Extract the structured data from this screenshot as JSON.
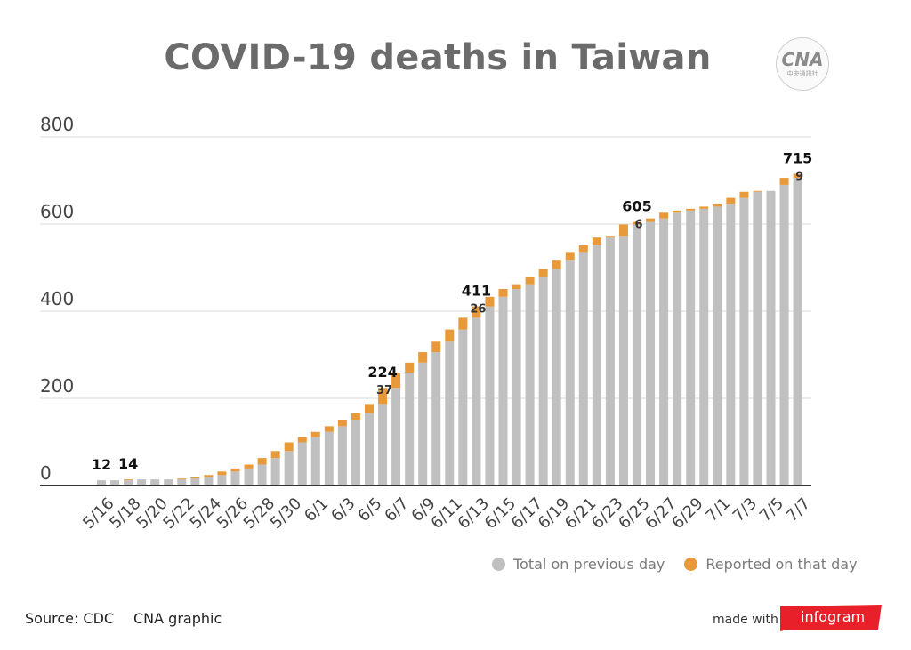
{
  "page": {
    "title": "COVID-19 deaths in Taiwan",
    "logo_text": "CNA",
    "logo_subtext": "中央通訊社",
    "source": "Source: CDC",
    "credit": "CNA graphic",
    "made_with": "made with",
    "brand": "infogram"
  },
  "chart_data": {
    "type": "bar",
    "stacked": true,
    "title": "COVID-19 deaths in Taiwan",
    "xlabel": "",
    "ylabel": "",
    "ylim": [
      0,
      800
    ],
    "yticks": [
      0,
      200,
      400,
      600,
      800
    ],
    "grid": true,
    "legend_position": "bottom-right",
    "categories": [
      "5/16",
      "5/17",
      "5/18",
      "5/19",
      "5/20",
      "5/21",
      "5/22",
      "5/23",
      "5/24",
      "5/25",
      "5/26",
      "5/27",
      "5/28",
      "5/29",
      "5/30",
      "5/31",
      "6/1",
      "6/2",
      "6/3",
      "6/4",
      "6/5",
      "6/6",
      "6/7",
      "6/8",
      "6/9",
      "6/10",
      "6/11",
      "6/12",
      "6/13",
      "6/14",
      "6/15",
      "6/16",
      "6/17",
      "6/18",
      "6/19",
      "6/20",
      "6/21",
      "6/22",
      "6/23",
      "6/24",
      "6/25",
      "6/26",
      "6/27",
      "6/28",
      "6/29",
      "6/30",
      "7/1",
      "7/2",
      "7/3",
      "7/4",
      "7/5",
      "7/6",
      "7/7"
    ],
    "series": [
      {
        "name": "Total on previous day",
        "color": "#c0c0c0",
        "values": [
          12,
          12,
          12,
          14,
          14,
          14,
          14,
          16,
          19,
          24,
          32,
          39,
          48,
          63,
          79,
          99,
          111,
          123,
          136,
          151,
          166,
          187,
          224,
          259,
          282,
          306,
          330,
          358,
          385,
          411,
          433,
          451,
          462,
          478,
          497,
          518,
          536,
          551,
          569,
          573,
          599,
          605,
          613,
          628,
          631,
          635,
          640,
          647,
          660,
          674,
          676,
          690,
          706
        ]
      },
      {
        "name": "Reported on that day",
        "color": "#e89a3a",
        "values": [
          0,
          0,
          2,
          0,
          0,
          0,
          2,
          3,
          5,
          8,
          7,
          9,
          15,
          16,
          20,
          12,
          12,
          13,
          15,
          15,
          21,
          37,
          35,
          23,
          24,
          24,
          28,
          27,
          26,
          22,
          18,
          11,
          16,
          19,
          21,
          18,
          15,
          18,
          4,
          26,
          6,
          8,
          15,
          3,
          4,
          5,
          7,
          13,
          14,
          2,
          0,
          16,
          9
        ]
      }
    ],
    "x_tick_labels": [
      "5/16",
      "5/18",
      "5/20",
      "5/22",
      "5/24",
      "5/26",
      "5/28",
      "5/30",
      "6/1",
      "6/3",
      "6/5",
      "6/7",
      "6/9",
      "6/11",
      "6/13",
      "6/15",
      "6/17",
      "6/19",
      "6/21",
      "6/23",
      "6/25",
      "6/27",
      "6/29",
      "7/1",
      "7/3",
      "7/5",
      "7/7"
    ],
    "annotations": [
      {
        "category": "5/16",
        "total": "12"
      },
      {
        "category": "5/18",
        "total": "14"
      },
      {
        "category": "6/6",
        "total": "224",
        "reported": "37"
      },
      {
        "category": "6/13",
        "total": "411",
        "reported": "26"
      },
      {
        "category": "6/25",
        "total": "605",
        "reported": "6"
      },
      {
        "category": "7/7",
        "total": "715",
        "reported": "9"
      }
    ]
  }
}
